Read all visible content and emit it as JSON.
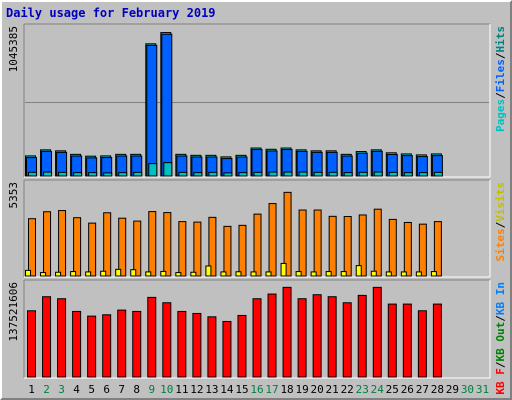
{
  "chart_data": {
    "type": "bar",
    "title": "Daily usage for February 2019",
    "days": [
      "1",
      "2",
      "3",
      "4",
      "5",
      "6",
      "7",
      "8",
      "9",
      "10",
      "11",
      "12",
      "13",
      "14",
      "15",
      "16",
      "17",
      "18",
      "19",
      "20",
      "21",
      "22",
      "23",
      "24",
      "25",
      "26",
      "27",
      "28",
      "29",
      "30",
      "31"
    ],
    "weekend_days": [
      "2",
      "3",
      "9",
      "10",
      "16",
      "17",
      "23",
      "24",
      "30",
      "31"
    ],
    "colors": {
      "background": "#c0c0c0",
      "weekday_label": "#000000",
      "weekend_label": "#008040",
      "title": "#0000c0",
      "pages": "#00c0c0",
      "files": "#0060ff",
      "hits": "#008080",
      "visits": "#ffff00",
      "sites": "#ff8000",
      "kb_out": "#008000",
      "kb_in": "#0080ff",
      "kb_f": "#ff0000"
    },
    "panels": [
      {
        "id": "hits_files_pages",
        "ymax_label": "1045385",
        "ymax": 1045385,
        "legend": [
          {
            "text": "Hits",
            "color": "#008080"
          },
          {
            "text": "Files",
            "color": "#0060ff"
          },
          {
            "text": "Pages",
            "color": "#00c0c0"
          }
        ],
        "series": [
          {
            "name": "Hits",
            "color": "#00c0c0",
            "values": [
              143000,
              186000,
              179000,
              154000,
              141000,
              143000,
              154000,
              154000,
              940000,
              1020000,
              154000,
              147000,
              147000,
              136000,
              147000,
              199000,
              190000,
              199000,
              186000,
              179000,
              179000,
              154000,
              174000,
              186000,
              165000,
              157000,
              150000,
              157000,
              0,
              0,
              0
            ]
          },
          {
            "name": "Files",
            "color": "#0060ff",
            "values": [
              131000,
              175000,
              168000,
              142000,
              129000,
              131000,
              142000,
              142000,
              929000,
              1008000,
              142000,
              135000,
              135000,
              124000,
              135000,
              188000,
              178000,
              188000,
              175000,
              168000,
              168000,
              142000,
              162000,
              175000,
              153000,
              145000,
              138000,
              145000,
              0,
              0,
              0
            ]
          },
          {
            "name": "Pages",
            "color": "#00c0c0",
            "values": [
              26000,
              28000,
              26000,
              24000,
              24000,
              22000,
              24000,
              26000,
              88000,
              95000,
              26000,
              24000,
              26000,
              22000,
              24000,
              26000,
              28000,
              28000,
              28000,
              26000,
              26000,
              24000,
              26000,
              28000,
              26000,
              24000,
              24000,
              26000,
              0,
              0,
              0
            ]
          }
        ]
      },
      {
        "id": "sites_visits",
        "ymax_label": "5353",
        "ymax": 5353,
        "legend": [
          {
            "text": "Visits",
            "color": "#c0c000"
          },
          {
            "text": "Sites",
            "color": "#ff8000"
          }
        ],
        "series": [
          {
            "name": "Sites",
            "color": "#ff8000",
            "values": [
              3370,
              3780,
              3850,
              3430,
              3110,
              3720,
              3400,
              3230,
              3790,
              3730,
              3200,
              3170,
              3450,
              2920,
              2980,
              3640,
              4260,
              4920,
              3880,
              3880,
              3510,
              3500,
              3590,
              3930,
              3330,
              3150,
              3050,
              3200,
              0,
              0,
              0
            ]
          },
          {
            "name": "Visits",
            "color": "#ffff00",
            "values": [
              330,
              200,
              220,
              260,
              240,
              280,
              390,
              370,
              240,
              270,
              200,
              220,
              590,
              240,
              250,
              240,
              240,
              740,
              260,
              240,
              260,
              260,
              610,
              280,
              240,
              240,
              240,
              260,
              0,
              0,
              0
            ]
          }
        ]
      },
      {
        "id": "kbytes",
        "ymax_label": "137521606",
        "ymax": 137521606,
        "legend": [
          {
            "text": "KB In",
            "color": "#0080ff"
          },
          {
            "text": "KB Out",
            "color": "#008000"
          },
          {
            "text": "KB F",
            "color": "#ff0000"
          }
        ],
        "series": [
          {
            "name": "KB F",
            "color": "#ff0000",
            "values": [
              99000000,
              120000000,
              117000000,
              98000000,
              91000000,
              93000000,
              100000000,
              98000000,
              119000000,
              111000000,
              98000000,
              95000000,
              90000000,
              83000000,
              92000000,
              117000000,
              124000000,
              134000000,
              117000000,
              123000000,
              120000000,
              111000000,
              122000000,
              134000000,
              109000000,
              109000000,
              99000000,
              109000000,
              0,
              0,
              0
            ]
          }
        ]
      }
    ]
  }
}
